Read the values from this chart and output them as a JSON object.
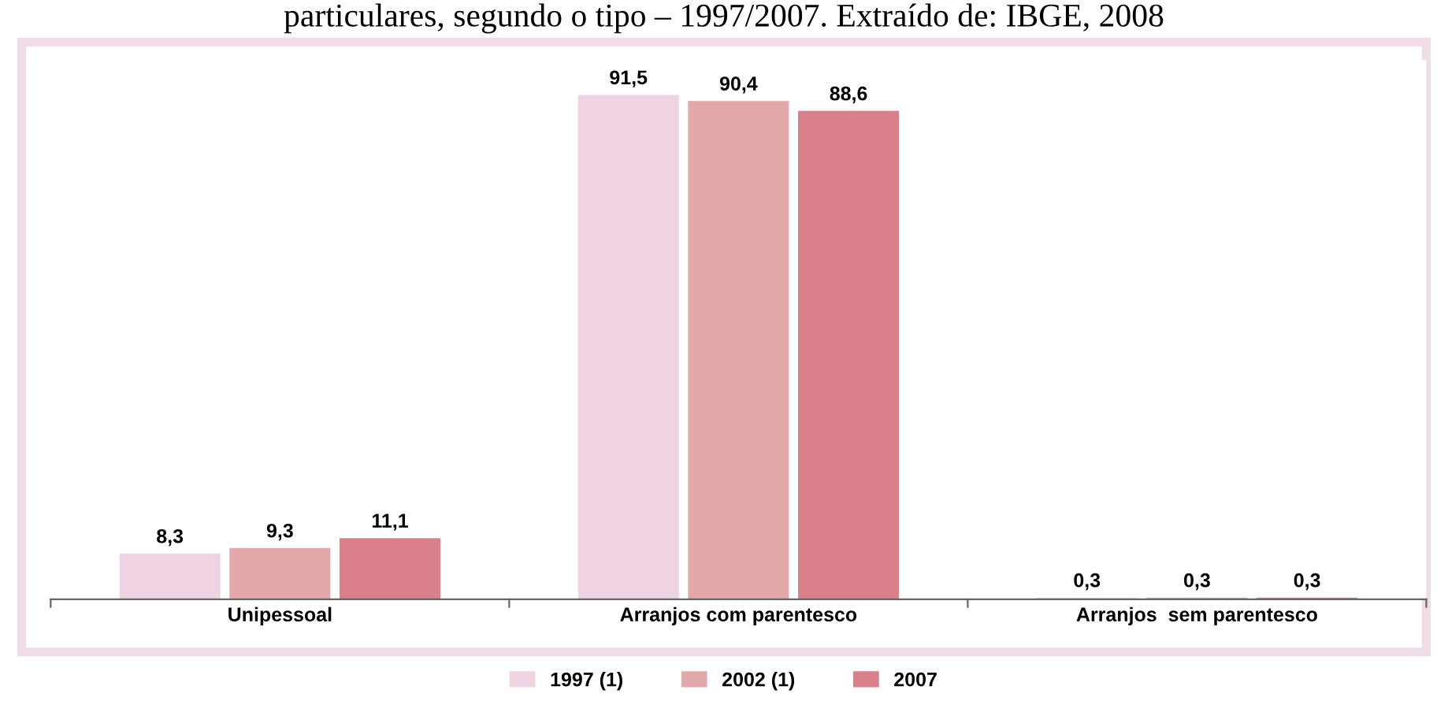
{
  "chart_data": {
    "type": "bar",
    "title": "particulares, segundo o tipo – 1997/2007. Extraído de: IBGE, 2008",
    "categories": [
      "Unipessoal",
      "Arranjos com parentesco",
      "Arranjos  sem parentesco"
    ],
    "series": [
      {
        "name": "1997 (1)",
        "color": "#efd3e3",
        "values": [
          8.3,
          91.5,
          0.3
        ],
        "value_labels": [
          "8,3",
          "91,5",
          "0,3"
        ]
      },
      {
        "name": "2002 (1)",
        "color": "#e3a9aa",
        "values": [
          9.3,
          90.4,
          0.3
        ],
        "value_labels": [
          "9,3",
          "90,4",
          "0,3"
        ]
      },
      {
        "name": "2007",
        "color": "#d9808a",
        "values": [
          11.1,
          88.6,
          0.3
        ],
        "value_labels": [
          "11,1",
          "88,6",
          "0,3"
        ]
      }
    ],
    "legend": "bottom",
    "grid": false
  }
}
